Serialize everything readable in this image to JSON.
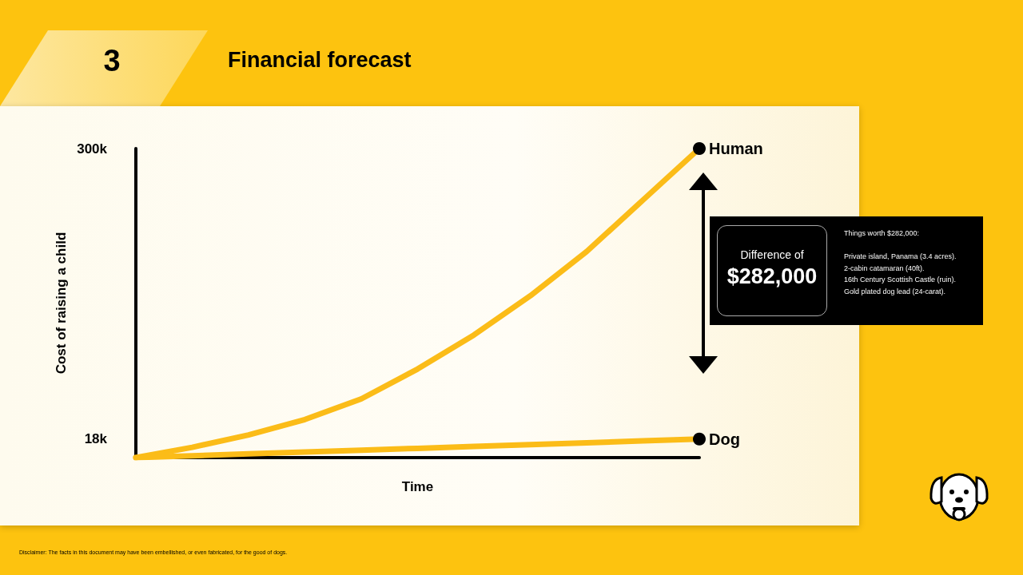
{
  "chart_data": {
    "type": "line",
    "title": "Financial forecast",
    "xlabel": "Time",
    "ylabel": "Cost of raising a child",
    "categories": [
      null,
      null,
      null,
      null,
      null,
      null,
      null,
      null,
      null,
      null,
      null
    ],
    "series": [
      {
        "name": "Human",
        "color": "#fbbc18",
        "values": [
          0,
          10,
          22,
          37,
          57,
          86,
          119,
          157,
          200,
          250,
          300
        ]
      },
      {
        "name": "Dog",
        "color": "#fbbc18",
        "values": [
          0,
          1.8,
          3.6,
          5.4,
          7.2,
          9,
          10.8,
          12.6,
          14.4,
          16.2,
          18
        ]
      }
    ],
    "ylim": [
      0,
      300
    ],
    "yticks": [
      {
        "value": 18,
        "label": "18k"
      },
      {
        "value": 300,
        "label": "300k"
      }
    ],
    "grid": false,
    "legend": false,
    "marker": "none",
    "line_style": "solid",
    "annotations": [
      "3",
      "Difference of",
      "$282,000",
      "Things worth $282,000:",
      "Private island, Panama (3.4 acres).",
      "2-cabin catamaran (40ft).",
      "16th Century Scottish Castle (ruin).",
      "Gold plated dog lead (24-carat).",
      "Disclaimer: The facts in this document may have been embellished, or even fabricated, for the good of dogs."
    ]
  }
}
